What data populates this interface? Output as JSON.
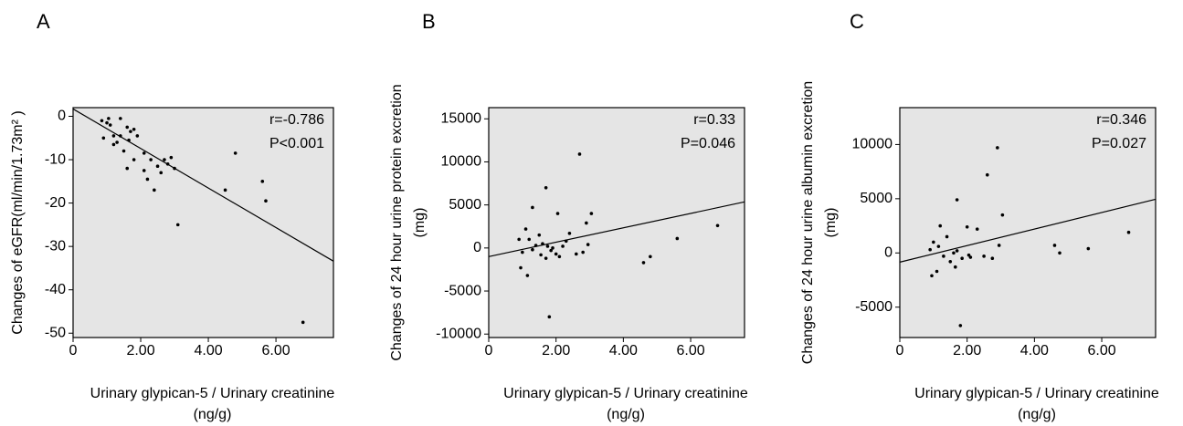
{
  "chart_data": [
    {
      "type": "scatter",
      "label": "A",
      "xlabel": [
        "Urinary glypican-5 / Urinary creatinine",
        "(ng/g)"
      ],
      "ylabel": [
        "Changes of eGFR(ml/min/1.73m² )"
      ],
      "annotations": [
        "r=-0.786",
        "P<0.001"
      ],
      "x": [
        0.85,
        0.9,
        1.0,
        1.05,
        1.1,
        1.2,
        1.2,
        1.3,
        1.4,
        1.4,
        1.5,
        1.6,
        1.6,
        1.65,
        1.7,
        1.8,
        1.8,
        1.9,
        2.1,
        2.1,
        2.2,
        2.3,
        2.4,
        2.5,
        2.6,
        2.7,
        2.8,
        2.9,
        3.0,
        3.1,
        4.5,
        4.8,
        5.6,
        5.7,
        6.8
      ],
      "y": [
        -1,
        -5,
        -1.5,
        -0.5,
        -2,
        -4.5,
        -6.5,
        -6,
        -0.5,
        -4.5,
        -8,
        -2.5,
        -12,
        -5.5,
        -3.5,
        -10,
        -3,
        -4.5,
        -8.5,
        -12.5,
        -14.5,
        -10,
        -17,
        -11.5,
        -13,
        -10,
        -11,
        -9.5,
        -12,
        -25,
        -17,
        -8.5,
        -15,
        -19.5,
        -47.5
      ],
      "trendline": {
        "x": [
          0,
          7.7
        ],
        "y": [
          1.7,
          -33.4
        ]
      },
      "xlim": [
        0,
        7.7
      ],
      "ylim": [
        -51,
        2
      ],
      "xticks": [
        0,
        {
          "value": 2,
          "label": "2.00"
        },
        {
          "value": 4,
          "label": "4.00"
        },
        {
          "value": 6,
          "label": "6.00"
        }
      ],
      "yticks": [
        0,
        -10,
        -20,
        -30,
        -40,
        -50
      ],
      "color": "#000000",
      "plot_background": "#e5e5e5"
    },
    {
      "type": "scatter",
      "label": "B",
      "xlabel": [
        "Urinary glypican-5 / Urinary creatinine",
        "(ng/g)"
      ],
      "ylabel": [
        "Changes of 24 hour urine protein excretion",
        "(mg)"
      ],
      "annotations": [
        "r=0.33",
        "P=0.046"
      ],
      "x": [
        0.9,
        0.95,
        1.0,
        1.1,
        1.15,
        1.2,
        1.3,
        1.3,
        1.4,
        1.5,
        1.55,
        1.6,
        1.7,
        1.7,
        1.75,
        1.8,
        1.85,
        1.9,
        2.0,
        2.05,
        2.1,
        2.2,
        2.3,
        2.4,
        2.6,
        2.7,
        2.8,
        2.9,
        2.95,
        3.05,
        4.6,
        4.8,
        5.6,
        6.8
      ],
      "y": [
        1000,
        -2300,
        -500,
        2200,
        -3200,
        1000,
        4700,
        -200,
        300,
        1500,
        -800,
        500,
        7000,
        -1200,
        200,
        -8000,
        -300,
        0,
        -700,
        4000,
        -1000,
        200,
        800,
        1700,
        -700,
        10900,
        -500,
        2900,
        400,
        4000,
        -1700,
        -1000,
        1100,
        2600
      ],
      "trendline": {
        "x": [
          0,
          7.6
        ],
        "y": [
          -1000,
          5350
        ]
      },
      "xlim": [
        0,
        7.6
      ],
      "ylim": [
        -10400,
        16300
      ],
      "xticks": [
        0,
        {
          "value": 2,
          "label": "2.00"
        },
        {
          "value": 4,
          "label": "4.00"
        },
        {
          "value": 6,
          "label": "6.00"
        }
      ],
      "yticks": [
        15000,
        10000,
        5000,
        0,
        -5000,
        -10000
      ],
      "color": "#000000",
      "plot_background": "#e5e5e5"
    },
    {
      "type": "scatter",
      "label": "C",
      "xlabel": [
        "Urinary glypican-5 / Urinary creatinine",
        "(ng/g)"
      ],
      "ylabel": [
        "Changes of 24 hour urine albumin excretion",
        "(mg)"
      ],
      "annotations": [
        "r=0.346",
        "P=0.027"
      ],
      "x": [
        0.9,
        0.95,
        1.0,
        1.1,
        1.15,
        1.2,
        1.3,
        1.4,
        1.5,
        1.6,
        1.65,
        1.7,
        1.7,
        1.8,
        1.85,
        2.0,
        2.05,
        2.1,
        2.3,
        2.5,
        2.6,
        2.75,
        2.9,
        2.95,
        3.05,
        4.6,
        4.75,
        5.6,
        6.8
      ],
      "y": [
        300,
        -2100,
        1000,
        -1700,
        600,
        2500,
        -300,
        1500,
        -800,
        0,
        -1300,
        4900,
        200,
        -6700,
        -500,
        2400,
        -200,
        -400,
        2200,
        -300,
        7200,
        -500,
        9700,
        700,
        3500,
        700,
        0,
        400,
        1900
      ],
      "trendline": {
        "x": [
          0,
          7.6
        ],
        "y": [
          -850,
          4950
        ]
      },
      "xlim": [
        0,
        7.6
      ],
      "ylim": [
        -7800,
        13400
      ],
      "xticks": [
        0,
        {
          "value": 2,
          "label": "2.00"
        },
        {
          "value": 4,
          "label": "4.00"
        },
        {
          "value": 6,
          "label": "6.00"
        }
      ],
      "yticks": [
        10000,
        5000,
        0,
        -5000
      ],
      "color": "#000000",
      "plot_background": "#e5e5e5"
    }
  ]
}
